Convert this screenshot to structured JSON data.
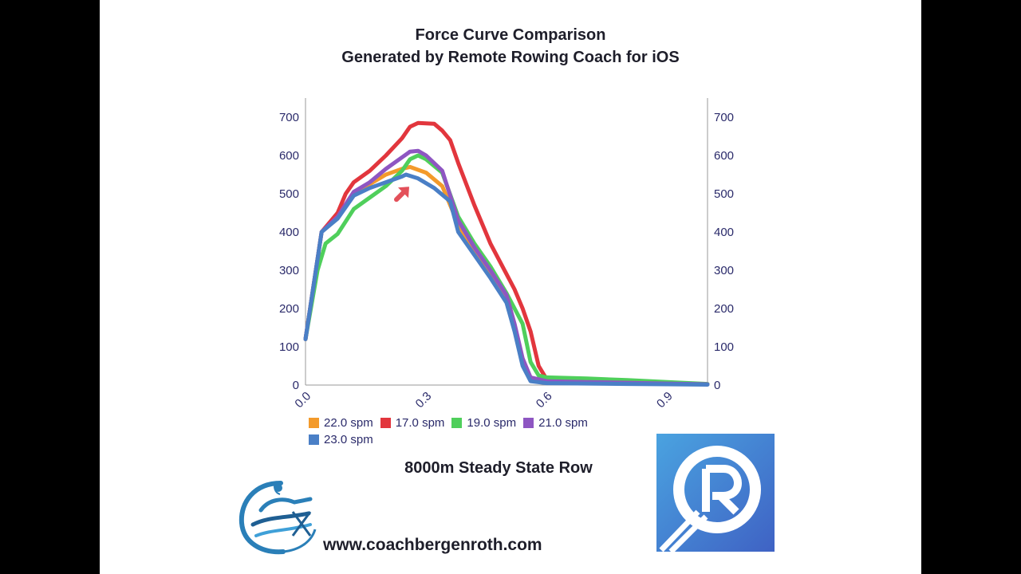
{
  "header": {
    "title": "Force Curve Comparison",
    "subtitle": "Generated by Remote Rowing Coach for iOS"
  },
  "footer": {
    "workout": "8000m Steady State Row",
    "website": "www.coachbergenroth.com"
  },
  "chart_data": {
    "type": "line",
    "xlim": [
      0.0,
      1.0
    ],
    "ylim": [
      0,
      750
    ],
    "x_ticks": [
      "0.0",
      "0.3",
      "0.6",
      "0.9"
    ],
    "x_tick_values": [
      0.0,
      0.3,
      0.6,
      0.9
    ],
    "y_ticks": [
      "0",
      "100",
      "200",
      "300",
      "400",
      "500",
      "600",
      "700"
    ],
    "y_tick_values": [
      0,
      100,
      200,
      300,
      400,
      500,
      600,
      700
    ],
    "grid": false,
    "legend_position": "bottom",
    "series": [
      {
        "name": "22.0 spm",
        "color": "#f39a2b",
        "points": [
          [
            0.0,
            120
          ],
          [
            0.04,
            400
          ],
          [
            0.08,
            440
          ],
          [
            0.12,
            500
          ],
          [
            0.16,
            525
          ],
          [
            0.2,
            550
          ],
          [
            0.24,
            565
          ],
          [
            0.26,
            570
          ],
          [
            0.3,
            555
          ],
          [
            0.34,
            520
          ],
          [
            0.38,
            420
          ],
          [
            0.42,
            350
          ],
          [
            0.46,
            290
          ],
          [
            0.5,
            230
          ],
          [
            0.52,
            150
          ],
          [
            0.54,
            60
          ],
          [
            0.56,
            15
          ],
          [
            0.6,
            10
          ],
          [
            0.7,
            8
          ],
          [
            0.8,
            6
          ],
          [
            0.9,
            4
          ],
          [
            1.0,
            2
          ]
        ]
      },
      {
        "name": "17.0 spm",
        "color": "#e2363d",
        "points": [
          [
            0.0,
            120
          ],
          [
            0.04,
            400
          ],
          [
            0.08,
            450
          ],
          [
            0.1,
            500
          ],
          [
            0.12,
            530
          ],
          [
            0.16,
            560
          ],
          [
            0.2,
            600
          ],
          [
            0.24,
            645
          ],
          [
            0.26,
            675
          ],
          [
            0.28,
            685
          ],
          [
            0.32,
            683
          ],
          [
            0.34,
            665
          ],
          [
            0.36,
            640
          ],
          [
            0.38,
            580
          ],
          [
            0.42,
            470
          ],
          [
            0.46,
            370
          ],
          [
            0.5,
            290
          ],
          [
            0.52,
            250
          ],
          [
            0.54,
            200
          ],
          [
            0.56,
            140
          ],
          [
            0.58,
            50
          ],
          [
            0.6,
            15
          ],
          [
            0.7,
            12
          ],
          [
            0.8,
            8
          ],
          [
            0.9,
            5
          ],
          [
            1.0,
            2
          ]
        ]
      },
      {
        "name": "19.0 spm",
        "color": "#4fcf5b",
        "points": [
          [
            0.0,
            120
          ],
          [
            0.03,
            300
          ],
          [
            0.05,
            370
          ],
          [
            0.08,
            395
          ],
          [
            0.12,
            460
          ],
          [
            0.16,
            490
          ],
          [
            0.2,
            520
          ],
          [
            0.24,
            560
          ],
          [
            0.26,
            590
          ],
          [
            0.28,
            600
          ],
          [
            0.3,
            590
          ],
          [
            0.34,
            555
          ],
          [
            0.38,
            440
          ],
          [
            0.42,
            370
          ],
          [
            0.46,
            310
          ],
          [
            0.5,
            240
          ],
          [
            0.54,
            160
          ],
          [
            0.56,
            60
          ],
          [
            0.58,
            25
          ],
          [
            0.6,
            20
          ],
          [
            0.7,
            17
          ],
          [
            0.8,
            13
          ],
          [
            0.9,
            8
          ],
          [
            1.0,
            3
          ]
        ]
      },
      {
        "name": "21.0 spm",
        "color": "#8e56c2",
        "points": [
          [
            0.0,
            120
          ],
          [
            0.04,
            400
          ],
          [
            0.08,
            440
          ],
          [
            0.12,
            505
          ],
          [
            0.16,
            530
          ],
          [
            0.2,
            565
          ],
          [
            0.24,
            595
          ],
          [
            0.26,
            610
          ],
          [
            0.28,
            612
          ],
          [
            0.3,
            600
          ],
          [
            0.34,
            560
          ],
          [
            0.38,
            430
          ],
          [
            0.42,
            360
          ],
          [
            0.46,
            300
          ],
          [
            0.5,
            235
          ],
          [
            0.52,
            160
          ],
          [
            0.54,
            70
          ],
          [
            0.56,
            20
          ],
          [
            0.6,
            10
          ],
          [
            0.7,
            8
          ],
          [
            0.8,
            6
          ],
          [
            0.9,
            4
          ],
          [
            1.0,
            2
          ]
        ]
      },
      {
        "name": "23.0 spm",
        "color": "#4a7fc6",
        "points": [
          [
            0.0,
            120
          ],
          [
            0.04,
            400
          ],
          [
            0.08,
            435
          ],
          [
            0.12,
            495
          ],
          [
            0.16,
            515
          ],
          [
            0.2,
            530
          ],
          [
            0.24,
            545
          ],
          [
            0.25,
            550
          ],
          [
            0.28,
            540
          ],
          [
            0.32,
            515
          ],
          [
            0.36,
            480
          ],
          [
            0.38,
            400
          ],
          [
            0.42,
            340
          ],
          [
            0.46,
            280
          ],
          [
            0.5,
            215
          ],
          [
            0.52,
            140
          ],
          [
            0.54,
            50
          ],
          [
            0.56,
            10
          ],
          [
            0.6,
            5
          ],
          [
            0.7,
            4
          ],
          [
            0.8,
            3
          ],
          [
            0.9,
            2
          ],
          [
            1.0,
            1
          ]
        ]
      }
    ]
  }
}
